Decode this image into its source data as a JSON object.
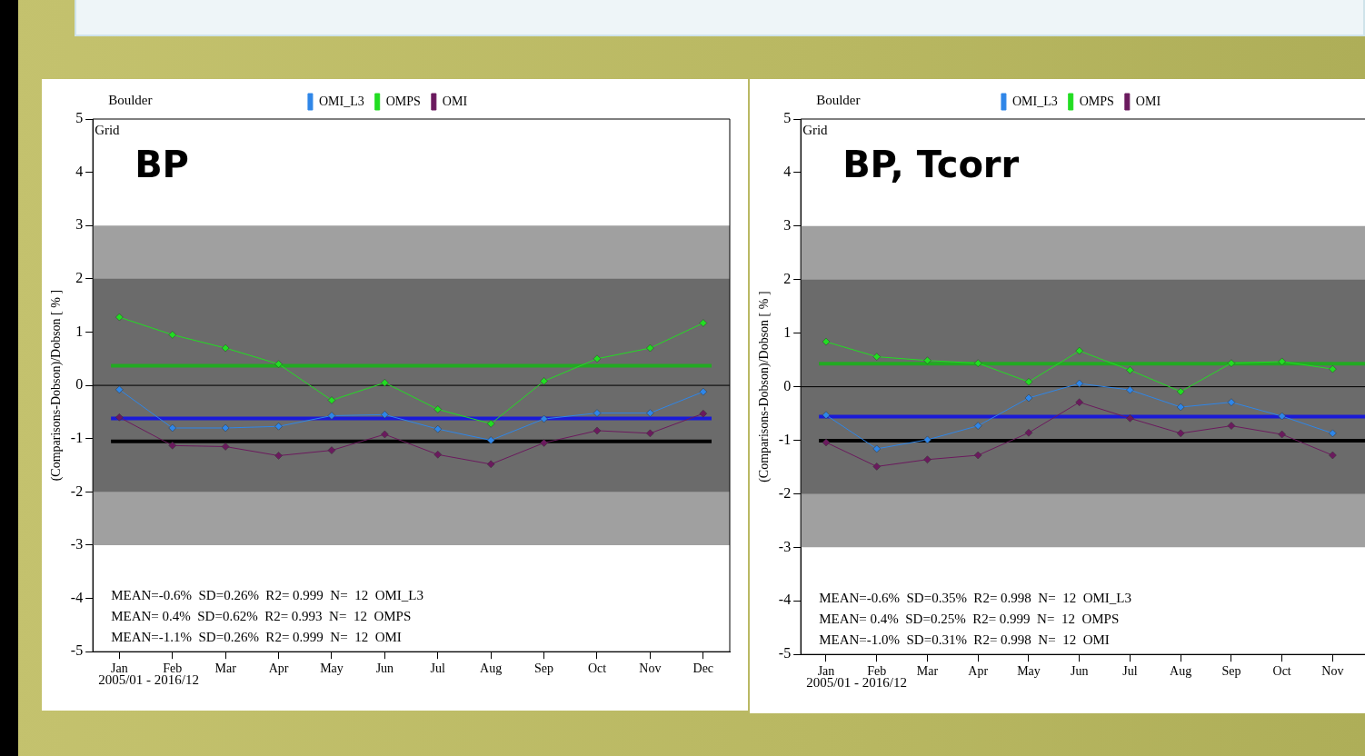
{
  "chart_data": [
    {
      "type": "line",
      "title": "BP",
      "ylabel": "(Comparisons-Dobson)/Dobson [ % ]",
      "categories": [
        "Jan",
        "Feb",
        "Mar",
        "Apr",
        "May",
        "Jun",
        "Jul",
        "Aug",
        "Sep",
        "Oct",
        "Nov",
        "Dec"
      ],
      "series": [
        {
          "name": "OMI_L3",
          "color": "#2f86e8",
          "values": [
            -0.08,
            -0.8,
            -0.8,
            -0.77,
            -0.57,
            -0.55,
            -0.82,
            -1.03,
            -0.63,
            -0.52,
            -0.52,
            -0.12
          ]
        },
        {
          "name": "OMPS",
          "color": "#22dd22",
          "values": [
            1.28,
            0.95,
            0.7,
            0.4,
            -0.28,
            0.05,
            -0.45,
            -0.72,
            0.08,
            0.5,
            0.7,
            1.17
          ]
        },
        {
          "name": "OMI",
          "color": "#6b1a5e",
          "values": [
            -0.6,
            -1.13,
            -1.15,
            -1.32,
            -1.22,
            -0.92,
            -1.3,
            -1.48,
            -1.08,
            -0.85,
            -0.9,
            -0.53
          ]
        }
      ],
      "ylim": [
        -5,
        5
      ],
      "yticks": [
        -5,
        -4,
        -3,
        -2,
        -1,
        0,
        1,
        2,
        3,
        4,
        5
      ],
      "grid": false,
      "legend": "top",
      "marker": "diamond",
      "bands": [
        {
          "axis": "y",
          "from": -3,
          "to": 3,
          "color": "#a0a0a0"
        },
        {
          "axis": "y",
          "from": -2,
          "to": 2,
          "color": "#6b6b6b"
        }
      ],
      "ref_lines": [
        {
          "axis": "y",
          "value": 0,
          "color": "#000000"
        },
        {
          "axis": "y",
          "value": 0.37,
          "color": "#22aa22"
        },
        {
          "axis": "y",
          "value": -0.62,
          "color": "#1a1ad8"
        },
        {
          "axis": "y",
          "value": -1.05,
          "color": "#000000"
        }
      ],
      "annotations": [
        "Boulder",
        "Grid",
        "MEAN=-0.6%  SD=0.26%  R2= 0.999  N=  12  OMI_L3",
        "MEAN= 0.4%  SD=0.62%  R2= 0.993  N=  12  OMPS",
        "MEAN=-1.1%  SD=0.26%  R2= 0.999  N=  12  OMI",
        "2005/01 - 2016/12"
      ]
    },
    {
      "type": "line",
      "title": "BP, Tcorr",
      "ylabel": "(Comparisons-Dobson)/Dobson [ % ]",
      "categories": [
        "Jan",
        "Feb",
        "Mar",
        "Apr",
        "May",
        "Jun",
        "Jul",
        "Aug",
        "Sep",
        "Oct",
        "Nov",
        null
      ],
      "series": [
        {
          "name": "OMI_L3",
          "color": "#2f86e8",
          "values": [
            -0.53,
            -1.16,
            -0.99,
            -0.73,
            -0.21,
            0.06,
            -0.06,
            -0.38,
            -0.29,
            -0.55,
            -0.87,
            null
          ]
        },
        {
          "name": "OMPS",
          "color": "#22dd22",
          "values": [
            0.84,
            0.56,
            0.49,
            0.44,
            0.09,
            0.67,
            0.31,
            -0.09,
            0.44,
            0.47,
            0.33,
            null
          ]
        },
        {
          "name": "OMI",
          "color": "#6b1a5e",
          "values": [
            -1.04,
            -1.49,
            -1.36,
            -1.28,
            -0.86,
            -0.29,
            -0.59,
            -0.87,
            -0.73,
            -0.89,
            -1.28,
            null
          ]
        }
      ],
      "ylim": [
        -5,
        5
      ],
      "yticks": [
        -5,
        -4,
        -3,
        -2,
        -1,
        0,
        1,
        2,
        3,
        4,
        5
      ],
      "grid": false,
      "legend": "top",
      "marker": "diamond",
      "bands": [
        {
          "axis": "y",
          "from": -3,
          "to": 3,
          "color": "#a0a0a0"
        },
        {
          "axis": "y",
          "from": -2,
          "to": 2,
          "color": "#6b6b6b"
        }
      ],
      "ref_lines": [
        {
          "axis": "y",
          "value": 0,
          "color": "#000000"
        },
        {
          "axis": "y",
          "value": 0.43,
          "color": "#22aa22"
        },
        {
          "axis": "y",
          "value": -0.56,
          "color": "#1a1ad8"
        },
        {
          "axis": "y",
          "value": -1.01,
          "color": "#000000"
        }
      ],
      "annotations": [
        "Boulder",
        "Grid",
        "MEAN=-0.6%  SD=0.35%  R2= 0.998  N=  12  OMI_L3",
        "MEAN= 0.4%  SD=0.25%  R2= 0.999  N=  12  OMPS",
        "MEAN=-1.0%  SD=0.31%  R2= 0.998  N=  12  OMI",
        "2005/01 - 2016/12"
      ]
    }
  ]
}
